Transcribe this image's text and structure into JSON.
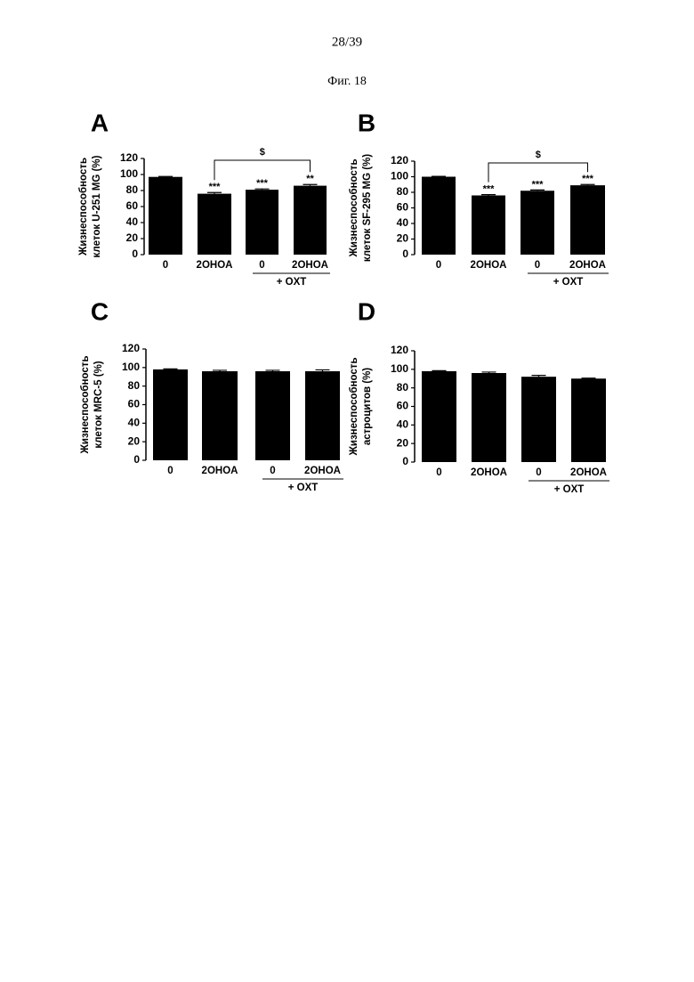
{
  "page_number": "28/39",
  "figure_label": "Фиг. 18",
  "chart_data": [
    {
      "type": "bar",
      "panel": "A",
      "ylabel": [
        "Жизнеспособность",
        "клеток U-251 MG (%)"
      ],
      "categories": [
        "0",
        "2OHOA",
        "0",
        "2OHOA"
      ],
      "values": [
        97,
        76,
        81,
        86
      ],
      "errors": [
        0.5,
        1.5,
        1,
        1.5
      ],
      "annotations": [
        null,
        "***",
        "***",
        "**"
      ],
      "comparison": {
        "label": "$",
        "between": [
          1,
          3
        ]
      },
      "group": {
        "label": "+ OXT",
        "categories": [
          2,
          3
        ]
      },
      "color": "#000000",
      "ylim": [
        0,
        120
      ],
      "yticks": [
        0,
        20,
        40,
        60,
        80,
        100,
        120
      ]
    },
    {
      "type": "bar",
      "panel": "B",
      "ylabel": [
        "Жизнеспособность",
        "клеток SF-295 MG (%)"
      ],
      "categories": [
        "0",
        "2OHOA",
        "0",
        "2OHOA"
      ],
      "values": [
        100,
        76,
        82,
        89
      ],
      "errors": [
        0.5,
        1,
        1,
        1
      ],
      "annotations": [
        null,
        "***",
        "***",
        "***"
      ],
      "comparison": {
        "label": "$",
        "between": [
          1,
          3
        ]
      },
      "group": {
        "label": "+ OXT",
        "categories": [
          2,
          3
        ]
      },
      "color": "#000000",
      "ylim": [
        0,
        120
      ],
      "yticks": [
        0,
        20,
        40,
        60,
        80,
        100,
        120
      ]
    },
    {
      "type": "bar",
      "panel": "C",
      "ylabel": [
        "Жизнеспособность",
        "клеток MRC-5 (%)"
      ],
      "categories": [
        "0",
        "2OHOA",
        "0",
        "2OHOA"
      ],
      "values": [
        98,
        96,
        96,
        96
      ],
      "errors": [
        0.5,
        1,
        1,
        1.5
      ],
      "group": {
        "label": "+ OXT",
        "categories": [
          2,
          3
        ]
      },
      "color": "#000000",
      "ylim": [
        0,
        120
      ],
      "yticks": [
        0,
        20,
        40,
        60,
        80,
        100,
        120
      ]
    },
    {
      "type": "bar",
      "panel": "D",
      "ylabel": [
        "Жизнеспособность",
        "астроцитов (%)"
      ],
      "categories": [
        "0",
        "2OHOA",
        "0",
        "2OHOA"
      ],
      "values": [
        98,
        96,
        92,
        90
      ],
      "errors": [
        0.5,
        1,
        1.5,
        0.5
      ],
      "group": {
        "label": "+ OXT",
        "categories": [
          2,
          3
        ]
      },
      "color": "#000000",
      "ylim": [
        0,
        120
      ],
      "yticks": [
        0,
        20,
        40,
        60,
        80,
        100,
        120
      ]
    }
  ]
}
